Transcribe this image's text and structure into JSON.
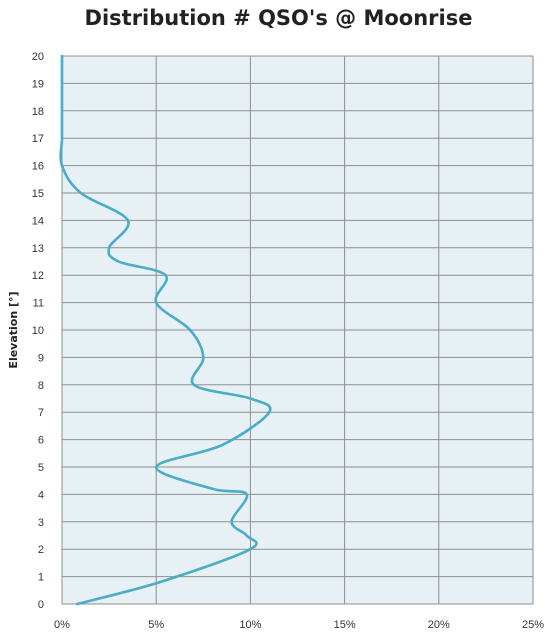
{
  "chart_data": {
    "type": "line",
    "title": "Distribution # QSO's @ Moonrise",
    "xlabel": "",
    "ylabel": "Elevation [°]",
    "xlim": [
      0,
      25
    ],
    "ylim": [
      0,
      20
    ],
    "x_ticks": [
      "0%",
      "5%",
      "10%",
      "15%",
      "20%",
      "25%"
    ],
    "y_ticks": [
      "0",
      "1",
      "2",
      "3",
      "4",
      "5",
      "6",
      "7",
      "8",
      "9",
      "10",
      "11",
      "12",
      "13",
      "14",
      "15",
      "16",
      "17",
      "18",
      "19",
      "20"
    ],
    "grid": true,
    "legend": "none",
    "colors": {
      "plot_background": "#e6f0f5",
      "grid": "#8f8f8f",
      "series": "#4bacc6"
    },
    "series": [
      {
        "name": "",
        "x": [
          0.8,
          5.2,
          10.0,
          9.8,
          9.0,
          9.8,
          8.0,
          5.0,
          8.5,
          11.0,
          10.0,
          7.0,
          7.5,
          6.8,
          5.0,
          5.5,
          3.0,
          2.5,
          3.5,
          1.0,
          0.0,
          0.0,
          0.0,
          0.0,
          0.0
        ],
        "y": [
          0.0,
          0.8,
          2.0,
          2.5,
          3.0,
          4.0,
          4.2,
          5.0,
          5.8,
          7.0,
          7.5,
          8.0,
          9.0,
          10.0,
          11.0,
          12.0,
          12.5,
          13.0,
          14.0,
          15.0,
          16.0,
          17.0,
          18.0,
          19.0,
          20.0
        ]
      }
    ]
  }
}
